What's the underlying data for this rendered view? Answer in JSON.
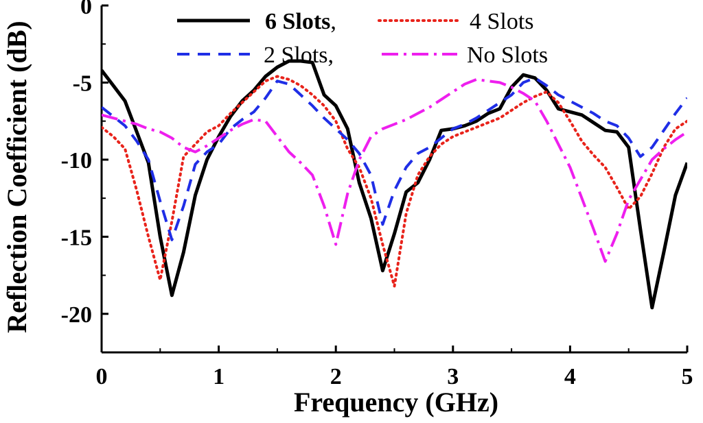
{
  "chart_data": {
    "type": "line",
    "title": "",
    "xlabel": "Frequency (GHz)",
    "ylabel": "Reflection Coefficient (dB)",
    "xlim": [
      0,
      5
    ],
    "ylim": [
      -22.5,
      0
    ],
    "xticks": [
      0,
      1,
      2,
      3,
      4,
      5
    ],
    "yticks": [
      0,
      -5,
      -10,
      -15,
      -20
    ],
    "xtick_labels": [
      "0",
      "1",
      "2",
      "3",
      "4",
      "5"
    ],
    "ytick_labels": [
      "0",
      "-5",
      "-10",
      "-15",
      "-20"
    ],
    "grid": false,
    "legend_position": "top",
    "series": [
      {
        "name": "6 Slots",
        "legend_bold": "6 Slots",
        "legend_suffix": ",",
        "color": "#000000",
        "style": "solid",
        "x": [
          0,
          0.1,
          0.2,
          0.3,
          0.4,
          0.5,
          0.6,
          0.7,
          0.8,
          0.9,
          1.0,
          1.1,
          1.2,
          1.3,
          1.4,
          1.5,
          1.6,
          1.7,
          1.8,
          1.9,
          2.0,
          2.1,
          2.2,
          2.3,
          2.4,
          2.5,
          2.6,
          2.7,
          2.8,
          2.9,
          3.0,
          3.1,
          3.2,
          3.3,
          3.4,
          3.5,
          3.6,
          3.7,
          3.8,
          3.9,
          4.0,
          4.1,
          4.2,
          4.3,
          4.4,
          4.5,
          4.6,
          4.7,
          4.8,
          4.9,
          5.0
        ],
        "y": [
          -4.2,
          -5.2,
          -6.2,
          -8.2,
          -10.2,
          -15.0,
          -18.8,
          -16.0,
          -12.3,
          -10.0,
          -8.5,
          -7.2,
          -6.2,
          -5.5,
          -4.6,
          -4.0,
          -3.6,
          -3.6,
          -3.7,
          -5.8,
          -6.5,
          -8.0,
          -11.5,
          -13.8,
          -17.2,
          -14.8,
          -12.1,
          -11.5,
          -10.0,
          -8.1,
          -8.0,
          -7.8,
          -7.5,
          -7.0,
          -6.7,
          -5.3,
          -4.5,
          -4.7,
          -5.5,
          -6.7,
          -6.9,
          -7.1,
          -7.6,
          -8.1,
          -8.2,
          -9.2,
          -14.5,
          -19.6,
          -16.0,
          -12.3,
          -10.2
        ]
      },
      {
        "name": "4 Slots",
        "color": "#e8231b",
        "style": "dotted",
        "x": [
          0,
          0.1,
          0.2,
          0.3,
          0.4,
          0.5,
          0.6,
          0.7,
          0.8,
          0.9,
          1.0,
          1.1,
          1.2,
          1.3,
          1.4,
          1.5,
          1.6,
          1.7,
          1.8,
          1.9,
          2.0,
          2.1,
          2.2,
          2.3,
          2.4,
          2.5,
          2.6,
          2.7,
          2.8,
          2.9,
          3.0,
          3.1,
          3.2,
          3.3,
          3.4,
          3.5,
          3.6,
          3.7,
          3.8,
          3.9,
          4.0,
          4.1,
          4.2,
          4.3,
          4.4,
          4.5,
          4.6,
          4.7,
          4.8,
          4.9,
          5.0
        ],
        "y": [
          -7.9,
          -8.5,
          -9.3,
          -12.0,
          -15.0,
          -17.8,
          -14.0,
          -9.8,
          -9.0,
          -8.2,
          -7.8,
          -7.0,
          -6.3,
          -5.6,
          -4.9,
          -4.6,
          -4.8,
          -5.2,
          -5.8,
          -6.5,
          -7.5,
          -9.3,
          -10.5,
          -12.5,
          -15.5,
          -18.2,
          -13.5,
          -11.0,
          -9.8,
          -9.0,
          -8.5,
          -8.2,
          -7.9,
          -7.6,
          -7.3,
          -6.8,
          -6.3,
          -5.9,
          -5.6,
          -6.3,
          -7.5,
          -8.8,
          -9.7,
          -10.5,
          -11.8,
          -13.2,
          -12.4,
          -10.9,
          -9.2,
          -8.0,
          -7.5
        ]
      },
      {
        "name": "2 Slots",
        "legend_suffix": ",",
        "color": "#1f2ee6",
        "style": "dashed",
        "x": [
          0,
          0.1,
          0.2,
          0.3,
          0.4,
          0.5,
          0.6,
          0.7,
          0.8,
          0.9,
          1.0,
          1.1,
          1.2,
          1.3,
          1.4,
          1.5,
          1.6,
          1.7,
          1.8,
          1.9,
          2.0,
          2.1,
          2.2,
          2.3,
          2.4,
          2.5,
          2.6,
          2.7,
          2.8,
          2.9,
          3.0,
          3.1,
          3.2,
          3.3,
          3.4,
          3.5,
          3.6,
          3.7,
          3.8,
          3.9,
          4.0,
          4.1,
          4.2,
          4.3,
          4.4,
          4.5,
          4.6,
          4.7,
          4.8,
          4.9,
          5.0
        ],
        "y": [
          -6.6,
          -7.2,
          -7.8,
          -8.8,
          -10.0,
          -12.7,
          -15.2,
          -13.0,
          -10.3,
          -9.5,
          -9.0,
          -8.0,
          -7.4,
          -6.9,
          -6.0,
          -4.9,
          -5.1,
          -5.8,
          -6.5,
          -7.3,
          -8.0,
          -8.7,
          -9.6,
          -11.0,
          -14.2,
          -12.0,
          -10.5,
          -9.6,
          -9.2,
          -8.6,
          -8.0,
          -7.7,
          -7.3,
          -6.8,
          -6.3,
          -5.8,
          -5.0,
          -4.7,
          -5.2,
          -5.8,
          -6.2,
          -6.6,
          -7.0,
          -7.5,
          -7.8,
          -8.6,
          -9.8,
          -9.2,
          -8.1,
          -7.0,
          -6.0
        ]
      },
      {
        "name": "No Slots",
        "color": "#ee1fee",
        "style": "dashdot",
        "x": [
          0,
          0.1,
          0.2,
          0.3,
          0.4,
          0.5,
          0.6,
          0.7,
          0.8,
          0.9,
          1.0,
          1.1,
          1.2,
          1.3,
          1.4,
          1.5,
          1.6,
          1.7,
          1.8,
          1.9,
          2.0,
          2.1,
          2.2,
          2.3,
          2.4,
          2.5,
          2.6,
          2.7,
          2.8,
          2.9,
          3.0,
          3.1,
          3.2,
          3.3,
          3.4,
          3.5,
          3.6,
          3.7,
          3.8,
          3.9,
          4.0,
          4.1,
          4.2,
          4.3,
          4.4,
          4.5,
          4.6,
          4.7,
          4.8,
          4.9,
          5.0
        ],
        "y": [
          -7.1,
          -7.3,
          -7.5,
          -7.7,
          -8.0,
          -8.2,
          -8.6,
          -9.2,
          -9.5,
          -9.1,
          -8.6,
          -8.1,
          -7.7,
          -7.4,
          -7.5,
          -8.5,
          -9.5,
          -10.2,
          -11.0,
          -13.0,
          -15.5,
          -12.2,
          -10.0,
          -8.5,
          -8.0,
          -7.7,
          -7.4,
          -7.0,
          -6.6,
          -6.1,
          -5.6,
          -5.1,
          -4.8,
          -4.9,
          -5.0,
          -5.3,
          -5.7,
          -6.2,
          -7.5,
          -9.0,
          -10.5,
          -12.5,
          -14.5,
          -16.6,
          -14.8,
          -12.6,
          -11.3,
          -10.0,
          -9.3,
          -8.7,
          -8.2
        ]
      }
    ]
  }
}
